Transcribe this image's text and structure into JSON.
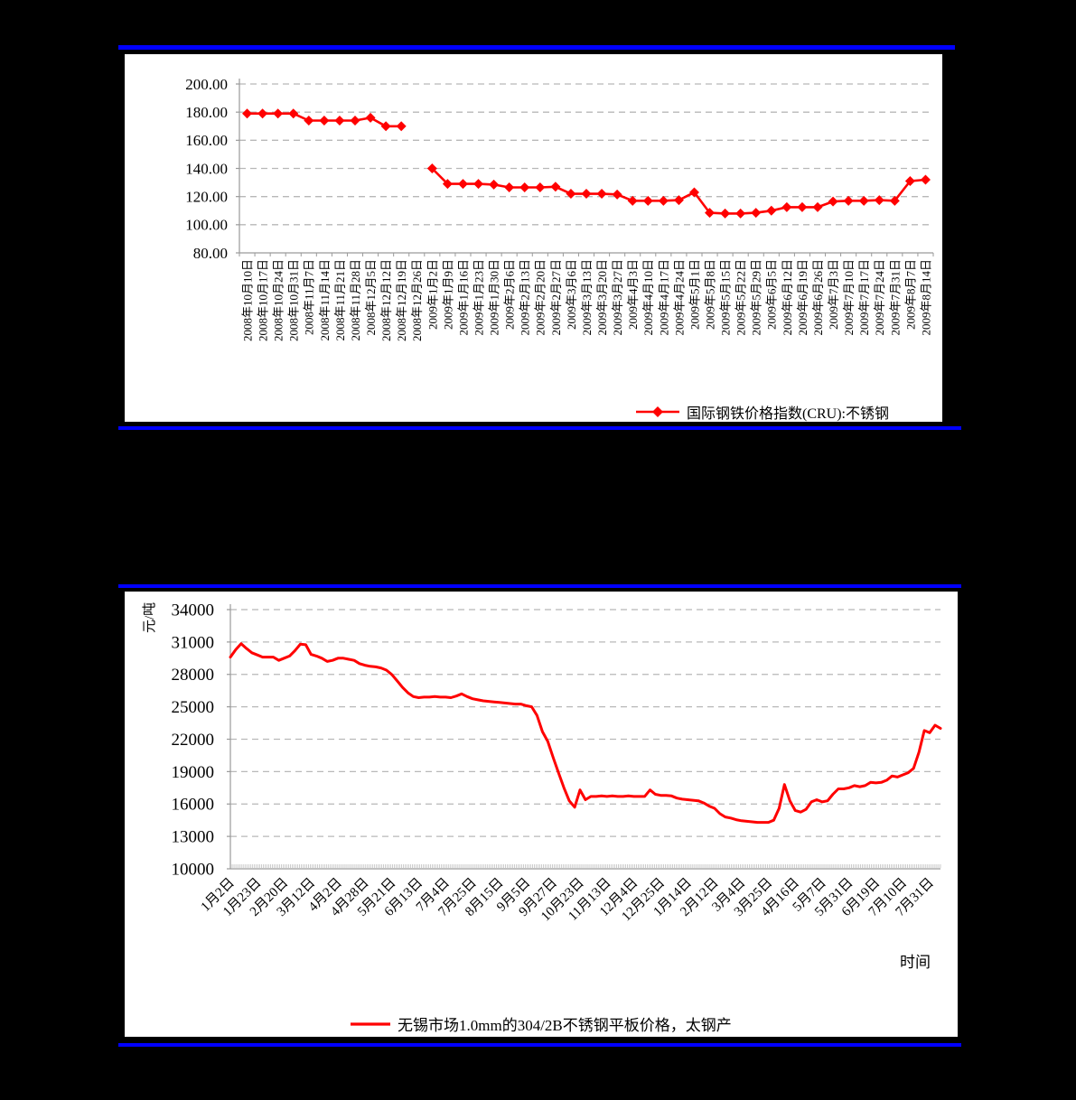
{
  "colors": {
    "background": "#000000",
    "rule_blue": "#0000ff",
    "panel": "#ffffff",
    "grid": "#b8b8b8",
    "axis": "#9a9a9a",
    "dense_tick": "#999999",
    "text": "#000000"
  },
  "chart_data": [
    {
      "type": "line",
      "title": "",
      "legend": "国际钢铁价格指数(CRU):不锈钢",
      "line_color": "#ff0000",
      "marker": "diamond",
      "grid": "horizontal-dashed",
      "legend_position": "bottom-right",
      "ylim": [
        80,
        200
      ],
      "ytick_labels": [
        "80.00",
        "100.00",
        "120.00",
        "140.00",
        "160.00",
        "180.00",
        "200.00"
      ],
      "categories": [
        "2008年10月10日",
        "2008年10月17日",
        "2008年10月24日",
        "2008年10月31日",
        "2008年11月7日",
        "2008年11月14日",
        "2008年11月21日",
        "2008年11月28日",
        "2008年12月5日",
        "2008年12月12日",
        "2008年12月19日",
        "2008年12月26日",
        "2009年1月2日",
        "2009年1月9日",
        "2009年1月16日",
        "2009年1月23日",
        "2009年1月30日",
        "2009年2月6日",
        "2009年2月13日",
        "2009年2月20日",
        "2009年2月27日",
        "2009年3月6日",
        "2009年3月13日",
        "2009年3月20日",
        "2009年3月27日",
        "2009年4月3日",
        "2009年4月10日",
        "2009年4月17日",
        "2009年4月24日",
        "2009年5月1日",
        "2009年5月8日",
        "2009年5月15日",
        "2009年5月22日",
        "2009年5月29日",
        "2009年6月5日",
        "2009年6月12日",
        "2009年6月19日",
        "2009年6月26日",
        "2009年7月3日",
        "2009年7月10日",
        "2009年7月17日",
        "2009年7月24日",
        "2009年7月31日",
        "2009年8月7日",
        "2009年8月14日"
      ],
      "values": [
        179,
        179,
        179,
        179,
        174,
        174,
        174,
        174,
        176,
        170,
        170,
        null,
        140,
        129,
        129,
        129,
        128.5,
        126.5,
        126.5,
        126.5,
        127,
        122,
        122,
        122,
        121.5,
        117,
        117,
        117,
        117.5,
        123,
        108.5,
        108,
        108,
        108.5,
        110,
        112.5,
        112.5,
        112.5,
        116.5,
        117,
        117,
        117.5,
        117,
        131,
        132
      ]
    },
    {
      "type": "line",
      "title": "",
      "legend": "无锡市场1.0mm的304/2B不锈钢平板价格，太钢产",
      "ylabel": "元/吨",
      "xlabel": "时间",
      "line_color": "#ff0000",
      "marker": "none",
      "grid": "horizontal-dashed",
      "legend_position": "bottom-center",
      "ylim": [
        10000,
        34000
      ],
      "ytick_labels": [
        "10000",
        "13000",
        "16000",
        "19000",
        "22000",
        "25000",
        "28000",
        "31000",
        "34000"
      ],
      "x_tick_labels": [
        "1月2日",
        "1月23日",
        "2月20日",
        "3月12日",
        "4月2日",
        "4月28日",
        "5月21日",
        "6月13日",
        "7月4日",
        "7月25日",
        "8月15日",
        "9月5日",
        "9月27日",
        "10月23日",
        "11月13日",
        "12月4日",
        "12月25日",
        "1月14日",
        "2月12日",
        "3月4日",
        "3月25日",
        "4月16日",
        "5月7日",
        "5月31日",
        "6月19日",
        "7月10日",
        "7月31日"
      ],
      "x_tick_every": 5,
      "values": [
        29600,
        30300,
        30850,
        30400,
        30000,
        29800,
        29600,
        29600,
        29600,
        29300,
        29500,
        29700,
        30200,
        30800,
        30750,
        29850,
        29700,
        29500,
        29200,
        29300,
        29500,
        29500,
        29400,
        29300,
        29000,
        28850,
        28750,
        28700,
        28600,
        28400,
        28000,
        27400,
        26800,
        26300,
        25950,
        25850,
        25900,
        25900,
        25950,
        25900,
        25900,
        25850,
        26000,
        26200,
        25950,
        25750,
        25650,
        25550,
        25500,
        25450,
        25400,
        25350,
        25300,
        25250,
        25250,
        25100,
        25000,
        24200,
        22700,
        21800,
        20300,
        18900,
        17500,
        16300,
        15700,
        17300,
        16400,
        16700,
        16700,
        16750,
        16700,
        16750,
        16700,
        16700,
        16750,
        16700,
        16700,
        16700,
        17300,
        16900,
        16800,
        16800,
        16750,
        16550,
        16450,
        16400,
        16350,
        16300,
        16100,
        15800,
        15600,
        15100,
        14800,
        14700,
        14550,
        14450,
        14400,
        14350,
        14300,
        14300,
        14300,
        14500,
        15600,
        17800,
        16300,
        15400,
        15250,
        15500,
        16200,
        16400,
        16200,
        16300,
        16900,
        17400,
        17400,
        17500,
        17700,
        17600,
        17700,
        18000,
        17950,
        18000,
        18200,
        18600,
        18500,
        18700,
        18900,
        19300,
        20800,
        22800,
        22600,
        23300,
        23000
      ]
    }
  ]
}
